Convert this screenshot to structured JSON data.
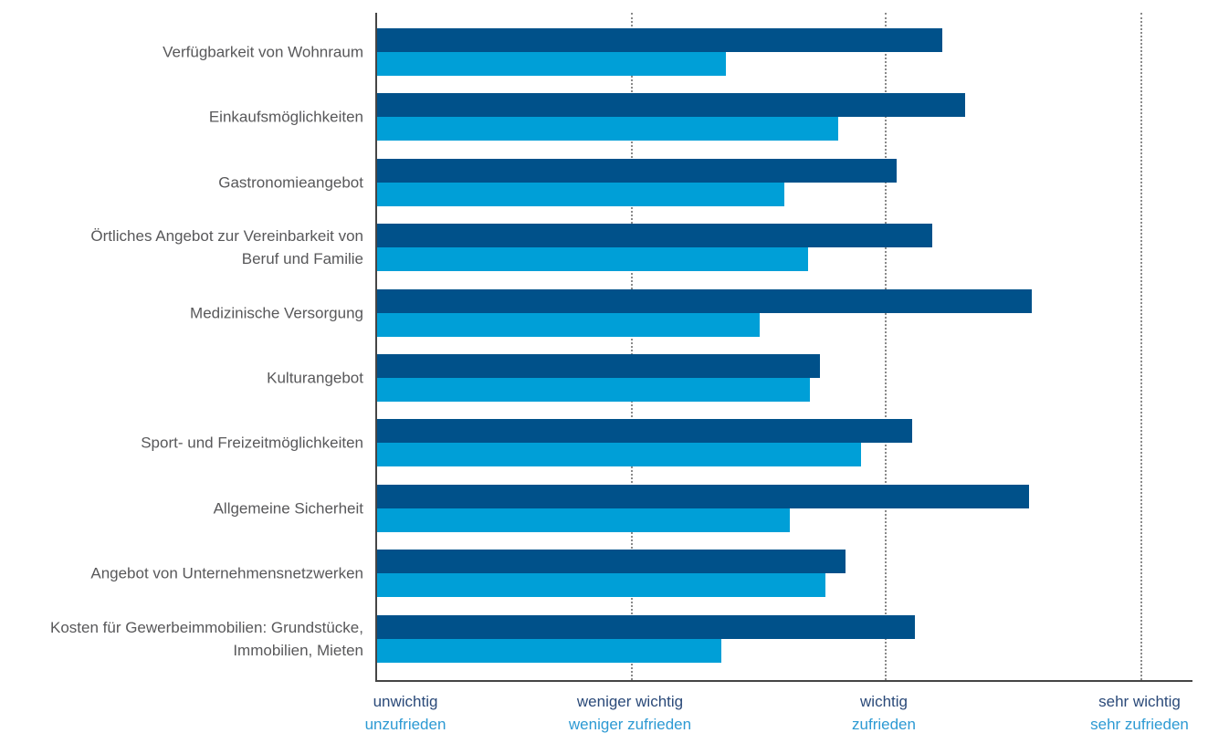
{
  "chart_data": {
    "type": "bar",
    "orientation": "horizontal",
    "title": "",
    "legend": "none",
    "grid": "dotted-vertical",
    "categories": [
      "Verfügbarkeit von Wohnraum",
      "Einkaufsmöglichkeiten",
      "Gastronomieangebot",
      "Örtliches Angebot zur Vereinbarkeit von\nBeruf und Familie",
      "Medizinische Versorgung",
      "Kulturangebot",
      "Sport- und Freizeitmöglichkeiten",
      "Allgemeine Sicherheit",
      "Angebot von Unternehmensnetzwerken",
      "Kosten für Gewerbeimmobilien: Grundstücke,\nImmobilien, Mieten"
    ],
    "series": [
      {
        "id": "importance",
        "color": "#00518a",
        "values": [
          3.22,
          3.31,
          3.04,
          3.18,
          3.57,
          2.74,
          3.1,
          3.56,
          2.84,
          3.11
        ]
      },
      {
        "id": "satisfaction",
        "color": "#009fd7",
        "values": [
          2.37,
          2.81,
          2.6,
          2.69,
          2.5,
          2.7,
          2.9,
          2.62,
          2.76,
          2.35
        ]
      }
    ],
    "x_axis": {
      "min": 1,
      "max": 4,
      "ticks": [
        {
          "value": 1,
          "line1": "unwichtig",
          "line2": "unzufrieden"
        },
        {
          "value": 2,
          "line1": "weniger wichtig",
          "line2": "weniger zufrieden"
        },
        {
          "value": 3,
          "line1": "wichtig",
          "line2": "zufrieden"
        },
        {
          "value": 4,
          "line1": "sehr wichtig",
          "line2": "sehr zufrieden"
        }
      ]
    },
    "colors": {
      "importance_bar": "#00518a",
      "satisfaction_bar": "#009fd7",
      "tick_importance_text": "#2b4a79",
      "tick_satisfaction_text": "#2d9ad3",
      "category_text": "#58585a",
      "axis_line": "#454545",
      "grid_line": "#8a8a8a"
    }
  }
}
